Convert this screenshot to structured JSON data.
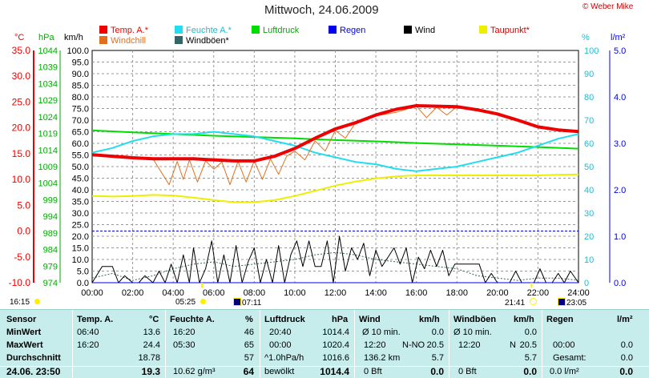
{
  "header": {
    "title": "Mittwoch, 24.06.2009",
    "copyright": "© Weber Mike"
  },
  "colors": {
    "temp": "#ee0000",
    "windchill": "#e07020",
    "humidity": "#22ddee",
    "pressure": "#00dd00",
    "rain": "#0000ee",
    "wind": "#000000",
    "dewpoint": "#eeee00",
    "gusts": "#336666",
    "panel_bg": "#c6ecec"
  },
  "axis_units": {
    "temp": "°C",
    "pressure": "hPa",
    "wind": "km/h",
    "humidity": "%",
    "rain": "l/m²"
  },
  "time_markers": {
    "left": "16:15",
    "sunrise": "05:25",
    "moonrise": "07:11",
    "sunset": "21:41",
    "moonset": "23:05"
  },
  "chart_data": {
    "type": "line",
    "x_ticks": [
      "00:00",
      "02:00",
      "04:00",
      "06:00",
      "08:00",
      "10:00",
      "12:00",
      "14:00",
      "16:00",
      "18:00",
      "20:00",
      "22:00",
      "24:00"
    ],
    "temp_ticks": [
      "35.0",
      "30.0",
      "25.0",
      "20.0",
      "15.0",
      "10.0",
      "5.0",
      "0.0",
      "-5.0",
      "-10.0"
    ],
    "pressure_ticks": [
      "1044",
      "1039",
      "1034",
      "1029",
      "1024",
      "1019",
      "1014",
      "1009",
      "1004",
      "999",
      "994",
      "989",
      "984",
      "979",
      "974"
    ],
    "wind_ticks": [
      "100.0",
      "95.0",
      "90.0",
      "85.0",
      "80.0",
      "75.0",
      "70.0",
      "65.0",
      "60.0",
      "55.0",
      "50.0",
      "45.0",
      "40.0",
      "35.0",
      "30.0",
      "25.0",
      "20.0",
      "15.0",
      "10.0",
      "5.0",
      "0.0"
    ],
    "humidity_ticks": [
      "100",
      "90",
      "80",
      "70",
      "60",
      "50",
      "40",
      "30",
      "20",
      "10",
      "0"
    ],
    "rain_ticks": [
      "5.0",
      "4.0",
      "3.0",
      "2.0",
      "1.0",
      "0.0"
    ],
    "ylim_wind": [
      0,
      100
    ],
    "ylim_temp": [
      -10,
      35
    ],
    "ylim_pressure": [
      974,
      1044
    ],
    "ylim_humidity": [
      0,
      100
    ],
    "ylim_rain": [
      0,
      5
    ],
    "legend": [
      {
        "name": "Temp. A.*",
        "key": "temp"
      },
      {
        "name": "Feuchte A.*",
        "key": "humidity"
      },
      {
        "name": "Luftdruck",
        "key": "pressure"
      },
      {
        "name": "Regen",
        "key": "rain"
      },
      {
        "name": "Wind",
        "key": "wind"
      },
      {
        "name": "Taupunkt*",
        "key": "dewpoint"
      },
      {
        "name": "Windchill",
        "key": "windchill"
      },
      {
        "name": "Windböen*",
        "key": "gusts"
      }
    ],
    "series": [
      {
        "name": "Temp. A.*",
        "key": "temp",
        "axis": "temp",
        "x": [
          0,
          1,
          2,
          3,
          4,
          5,
          6,
          7,
          8,
          9,
          10,
          11,
          12,
          13,
          14,
          15,
          16,
          17,
          18,
          19,
          20,
          21,
          22,
          23,
          24
        ],
        "values": [
          14.8,
          14.5,
          14.2,
          14.0,
          14.0,
          14.0,
          13.8,
          13.6,
          13.6,
          14.5,
          16.0,
          18.0,
          19.8,
          21.0,
          22.5,
          23.6,
          24.3,
          24.2,
          24.1,
          23.5,
          22.7,
          21.5,
          20.2,
          19.6,
          19.3
        ]
      },
      {
        "name": "Windchill",
        "key": "windchill",
        "axis": "temp",
        "x": [
          0,
          1,
          2,
          3,
          3.8,
          4.2,
          4.5,
          4.8,
          5.2,
          5.6,
          6,
          6.4,
          6.8,
          7.2,
          7.6,
          8,
          8.4,
          8.8,
          9.2,
          9.6,
          10,
          10.5,
          11,
          11.5,
          12,
          12.5,
          13,
          14,
          15,
          16,
          16.5,
          17,
          17.5,
          18,
          19,
          20,
          21,
          22,
          23,
          24
        ],
        "values": [
          14.8,
          14.5,
          14.2,
          14.0,
          9,
          13.5,
          10,
          13.8,
          9.5,
          13.6,
          12,
          13.4,
          9,
          13.5,
          9.5,
          13.6,
          10,
          14.0,
          11,
          14.5,
          15.5,
          13.8,
          17.5,
          15.5,
          19.5,
          18,
          21,
          22.3,
          23,
          24.2,
          22,
          24.0,
          22.5,
          24.1,
          23.4,
          22.6,
          21.4,
          20.1,
          19.5,
          19.2
        ]
      },
      {
        "name": "Feuchte A.*",
        "key": "humidity",
        "axis": "humidity",
        "x": [
          0,
          1,
          2,
          3,
          4,
          5,
          6,
          7,
          8,
          9,
          10,
          11,
          12,
          13,
          14,
          15,
          16,
          17,
          18,
          19,
          20,
          21,
          22,
          23,
          24
        ],
        "values": [
          56,
          58,
          61,
          63,
          64,
          64,
          65,
          64,
          63,
          61,
          59,
          56,
          54,
          52,
          51,
          49,
          48,
          49,
          50,
          52,
          54,
          56,
          59,
          62,
          64
        ]
      },
      {
        "name": "Luftdruck",
        "key": "pressure",
        "axis": "pressure",
        "x": [
          0,
          2,
          4,
          6,
          8,
          10,
          12,
          14,
          16,
          18,
          20,
          22,
          24
        ],
        "values": [
          1019.9,
          1019.3,
          1018.8,
          1018.3,
          1017.9,
          1017.5,
          1017.0,
          1016.6,
          1016.1,
          1015.7,
          1015.3,
          1014.9,
          1014.4
        ]
      },
      {
        "name": "Taupunkt*",
        "key": "dewpoint",
        "axis": "temp",
        "x": [
          0,
          1,
          2,
          3,
          4,
          5,
          6,
          7,
          8,
          9,
          10,
          11,
          12,
          13,
          14,
          15,
          16,
          17,
          18,
          19,
          20,
          21,
          22,
          23,
          24
        ],
        "values": [
          6.8,
          6.7,
          6.8,
          7.0,
          6.9,
          6.5,
          6.0,
          5.6,
          5.6,
          6.0,
          6.8,
          7.8,
          8.8,
          9.6,
          10.2,
          10.6,
          10.8,
          10.8,
          10.8,
          10.8,
          10.8,
          10.8,
          10.8,
          10.9,
          11.0
        ]
      },
      {
        "name": "Wind",
        "key": "wind",
        "axis": "wind",
        "x": [
          0,
          0.5,
          1,
          1.3,
          1.6,
          2,
          2.3,
          2.6,
          3,
          3.3,
          3.6,
          3.9,
          4.2,
          4.5,
          4.8,
          5,
          5.3,
          5.6,
          5.9,
          6.2,
          6.5,
          6.8,
          7.1,
          7.4,
          7.7,
          8,
          8.3,
          8.6,
          8.9,
          9.2,
          9.5,
          9.8,
          10.1,
          10.4,
          10.7,
          11,
          11.3,
          11.6,
          11.9,
          12.2,
          12.5,
          12.8,
          13.1,
          13.4,
          13.7,
          14,
          14.3,
          14.6,
          14.9,
          15.2,
          15.5,
          15.8,
          16.1,
          16.4,
          16.7,
          17,
          17.3,
          17.6,
          17.9,
          18.2,
          18.5,
          18.8,
          19.1,
          19.4,
          19.7,
          20,
          20.3,
          20.6,
          20.9,
          21.2,
          21.5,
          21.8,
          22.1,
          22.4,
          22.7,
          23,
          23.3,
          23.6,
          24
        ],
        "values": [
          0,
          7,
          7,
          0,
          3,
          0,
          0,
          3,
          0,
          5,
          0,
          8,
          0,
          12,
          0,
          15,
          0,
          6,
          18,
          0,
          12,
          0,
          16,
          0,
          9,
          15,
          0,
          10,
          0,
          16,
          0,
          12,
          18,
          7,
          18,
          7,
          7,
          18,
          0,
          20,
          5,
          15,
          10,
          17,
          3,
          14,
          7,
          11,
          15,
          8,
          15,
          0,
          11,
          6,
          14,
          7,
          14,
          3,
          8,
          8,
          8,
          8,
          8,
          0,
          4,
          0,
          0,
          0,
          5,
          0,
          0,
          0,
          6,
          0,
          0,
          4,
          0,
          5,
          0
        ]
      },
      {
        "name": "Windböen*",
        "key": "gusts",
        "axis": "wind",
        "x": [
          0,
          1,
          2,
          3,
          4,
          5,
          6,
          7,
          8,
          9,
          10,
          11,
          12,
          13,
          14,
          15,
          16,
          17,
          18,
          19,
          20,
          21,
          22,
          23,
          24
        ],
        "values": [
          2,
          4,
          1,
          3,
          6,
          8,
          9,
          7,
          8,
          9,
          10,
          12,
          13,
          12,
          10,
          9,
          8,
          7,
          6,
          3,
          2,
          1,
          2,
          2,
          1
        ]
      },
      {
        "name": "Regen",
        "key": "rain",
        "axis": "rain",
        "x": [
          0,
          24
        ],
        "values": [
          0,
          0
        ]
      }
    ],
    "reference_lines": [
      {
        "axis": "temp",
        "value": 0.0,
        "color": "#0000ee"
      }
    ]
  },
  "stats": {
    "headers": {
      "sensor": "Sensor",
      "temp": "Temp. A.",
      "temp_unit": "°C",
      "hum": "Feuchte A.",
      "hum_unit": "%",
      "press": "Luftdruck",
      "press_unit": "hPa",
      "wind": "Wind",
      "wind_unit": "km/h",
      "gust": "Windböen",
      "gust_unit": "km/h",
      "rain": "Regen",
      "rain_unit": "l/m²"
    },
    "row_labels": {
      "min": "MinWert",
      "max": "MaxWert",
      "avg": "Durchschnitt",
      "current": "24.06. 23:50"
    },
    "temp": {
      "min_time": "06:40",
      "min": "13.6",
      "max_time": "16:20",
      "max": "24.4",
      "avg": "18.78",
      "current": "19.3"
    },
    "hum": {
      "min_time": "16:20",
      "min": "46",
      "max_time": "05:30",
      "max": "65",
      "avg": "57",
      "abs": "10.62 g/m³",
      "current": "64"
    },
    "press": {
      "min_time": "20:40",
      "min": "1014.4",
      "max_time": "00:00",
      "max": "1020.4",
      "trend": "^1.0hPa/h",
      "avg": "1016.6",
      "weather": "bewölkt",
      "current": "1014.4"
    },
    "wind": {
      "r1_label": "Ø 10 min.",
      "r1_val": "0.0",
      "r2_time": "12:20",
      "r2_dir": "N-NO",
      "r2_val": "20.5",
      "r3_label": "136.2 km",
      "r3_val": "5.7",
      "r4_label": "0 Bft",
      "current": "0.0"
    },
    "gust": {
      "r1_label": "Ø 10 min.",
      "r1_val": "0.0",
      "r2_time": "12:20",
      "r2_dir": "N",
      "r2_val": "20.5",
      "r3_val": "5.7",
      "r4_label": "0 Bft",
      "current": "0.0"
    },
    "rain": {
      "r2_time": "00:00",
      "r2_val": "0.0",
      "r3_label": "Gesamt:",
      "r3_val": "0.0",
      "r4_label": "0.0 l/m²",
      "current": "0.0"
    }
  }
}
